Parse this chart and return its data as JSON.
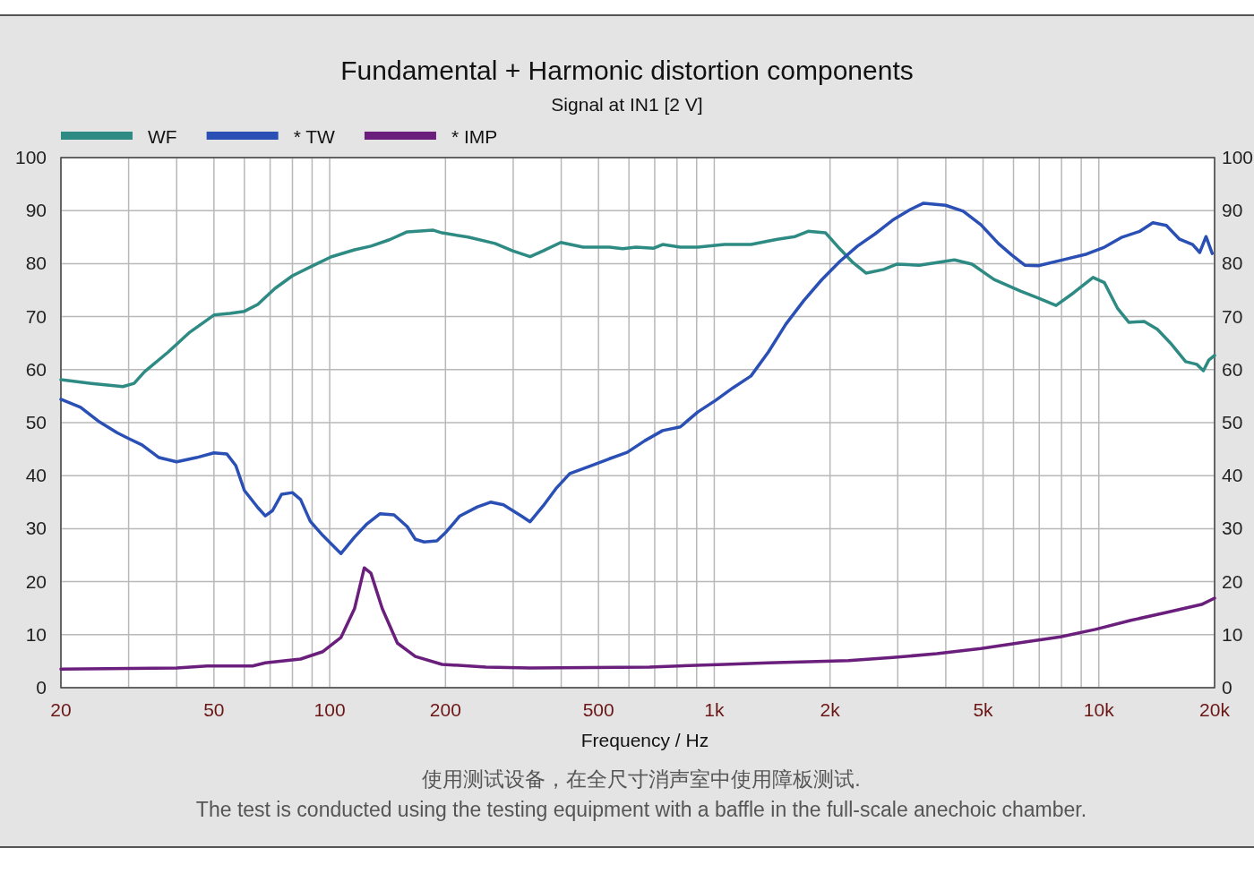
{
  "chart_data": {
    "type": "line",
    "title": "Fundamental + Harmonic distortion components",
    "subtitle": "Signal at IN1 [2 V]",
    "xlabel": "Frequency / Hz",
    "annotations": [
      "使用测试设备，在全尺寸消声室中使用障板测试.",
      "The test is conducted using the testing equipment with a baffle in the full-scale anechoic chamber."
    ],
    "log": "x",
    "grid": true,
    "legend": "top left",
    "xlim": [
      20,
      20000
    ],
    "xticks": [
      20,
      {
        "value": 30,
        "label": null
      },
      {
        "value": 40,
        "label": null
      },
      50,
      {
        "value": 60,
        "label": null
      },
      {
        "value": 70,
        "label": null
      },
      {
        "value": 80,
        "label": null
      },
      {
        "value": 90,
        "label": null
      },
      100,
      200,
      {
        "value": 300,
        "label": null
      },
      {
        "value": 400,
        "label": null
      },
      500,
      {
        "value": 600,
        "label": null
      },
      {
        "value": 700,
        "label": null
      },
      {
        "value": 800,
        "label": null
      },
      {
        "value": 900,
        "label": null
      },
      {
        "value": 1000,
        "label": "1k"
      },
      {
        "value": 2000,
        "label": "2k"
      },
      {
        "value": 3000,
        "label": null
      },
      {
        "value": 4000,
        "label": null
      },
      {
        "value": 5000,
        "label": "5k"
      },
      {
        "value": 6000,
        "label": null
      },
      {
        "value": 7000,
        "label": null
      },
      {
        "value": 8000,
        "label": null
      },
      {
        "value": 9000,
        "label": null
      },
      {
        "value": 10000,
        "label": "10k"
      },
      {
        "value": 20000,
        "label": "20k"
      }
    ],
    "ylim": [
      0,
      100
    ],
    "yticks": [
      0,
      10,
      20,
      30,
      40,
      50,
      60,
      70,
      80,
      90,
      100
    ],
    "y2lim": [
      0,
      100
    ],
    "y2ticks": [
      0,
      10,
      20,
      30,
      40,
      50,
      60,
      70,
      80,
      90,
      100
    ],
    "series": [
      {
        "name": "WF",
        "color": "#2e8b84",
        "x": [
          20,
          24,
          29,
          31,
          33,
          38,
          43,
          50,
          55,
          60,
          65,
          72,
          80,
          91,
          101,
          116,
          128,
          143,
          159,
          186,
          196,
          229,
          269,
          299,
          332,
          359,
          399,
          456,
          534,
          578,
          626,
          696,
          734,
          816,
          906,
          1062,
          1246,
          1458,
          1622,
          1754,
          1948,
          2120,
          2294,
          2484,
          2760,
          2988,
          3410,
          3790,
          4212,
          4680,
          5340,
          6260,
          6960,
          7740,
          8600,
          9660,
          10340,
          11200,
          11980,
          13120,
          14200,
          15360,
          16820,
          17980,
          18700,
          19320,
          20000
        ],
        "values": [
          58.1,
          57.4,
          56.8,
          57.4,
          59.6,
          63.3,
          66.9,
          70.3,
          70.6,
          71,
          72.3,
          75.3,
          77.7,
          79.7,
          81.3,
          82.6,
          83.3,
          84.5,
          86,
          86.3,
          85.8,
          85,
          83.8,
          82.4,
          81.3,
          82.4,
          84,
          83.1,
          83.1,
          82.8,
          83.1,
          82.9,
          83.6,
          83.1,
          83.1,
          83.6,
          83.6,
          84.6,
          85.1,
          86.1,
          85.8,
          82.8,
          80.2,
          78.2,
          78.9,
          79.9,
          79.7,
          80.2,
          80.7,
          79.9,
          77,
          74.8,
          73.5,
          72.1,
          74.5,
          77.4,
          76.4,
          71.5,
          68.9,
          69.1,
          67.6,
          65,
          61.5,
          61,
          59.8,
          61.8,
          62.7
        ]
      },
      {
        "name": "* TW",
        "color": "#2a4fb5",
        "x": [
          20,
          22.5,
          25,
          28,
          30,
          32.5,
          36,
          40,
          45,
          50,
          54,
          57,
          60,
          65,
          68,
          71,
          75,
          80,
          84,
          89,
          96,
          104,
          107,
          116,
          125,
          135,
          147,
          159,
          167,
          176,
          190,
          201,
          218,
          242,
          262,
          283,
          315,
          332,
          359,
          389,
          421,
          480,
          534,
          594,
          660,
          734,
          816,
          906,
          1008,
          1120,
          1246,
          1382,
          1536,
          1708,
          1900,
          2120,
          2356,
          2618,
          2910,
          3234,
          3502,
          3994,
          4440,
          4940,
          5480,
          5940,
          6420,
          6960,
          7940,
          9300,
          10340,
          11500,
          12780,
          13820,
          14980,
          16220,
          17540,
          18300,
          19000,
          19720
        ],
        "values": [
          54.4,
          52.9,
          50.3,
          48.1,
          47,
          45.8,
          43.4,
          42.6,
          43.4,
          44.3,
          44.1,
          41.9,
          37.2,
          34,
          32.4,
          33.4,
          36.5,
          36.8,
          35.5,
          31.4,
          28.7,
          26.2,
          25.3,
          28.4,
          30.9,
          32.8,
          32.6,
          30.4,
          28,
          27.5,
          27.7,
          29.4,
          32.4,
          34.1,
          35,
          34.5,
          32.4,
          31.3,
          34.3,
          37.7,
          40.4,
          41.9,
          43.2,
          44.4,
          46.6,
          48.5,
          49.2,
          52,
          54.2,
          56.6,
          58.8,
          63.3,
          68.6,
          73,
          76.9,
          80.4,
          83.3,
          85.6,
          88.2,
          90.2,
          91.4,
          91,
          89.9,
          87.3,
          83.8,
          81.6,
          79.7,
          79.6,
          80.6,
          81.8,
          83.1,
          85,
          86.1,
          87.7,
          87.2,
          84.6,
          83.6,
          82.1,
          85.1,
          81.9
        ]
      },
      {
        "name": "* IMP",
        "color": "#6b1f7c",
        "x": [
          20,
          40,
          48,
          63,
          68,
          84,
          96,
          107,
          116,
          123,
          128,
          137,
          150,
          167,
          196,
          255,
          332,
          678,
          1062,
          1382,
          2234,
          2910,
          3790,
          4940,
          6420,
          7940,
          9800,
          12120,
          14980,
          18500,
          20000
        ],
        "values": [
          3.5,
          3.7,
          4.1,
          4.1,
          4.7,
          5.4,
          6.8,
          9.5,
          14.9,
          22.6,
          21.6,
          14.9,
          8.4,
          5.9,
          4.4,
          3.9,
          3.7,
          3.9,
          4.4,
          4.7,
          5.1,
          5.7,
          6.4,
          7.4,
          8.6,
          9.6,
          11,
          12.7,
          14.2,
          15.7,
          16.9
        ]
      }
    ]
  }
}
